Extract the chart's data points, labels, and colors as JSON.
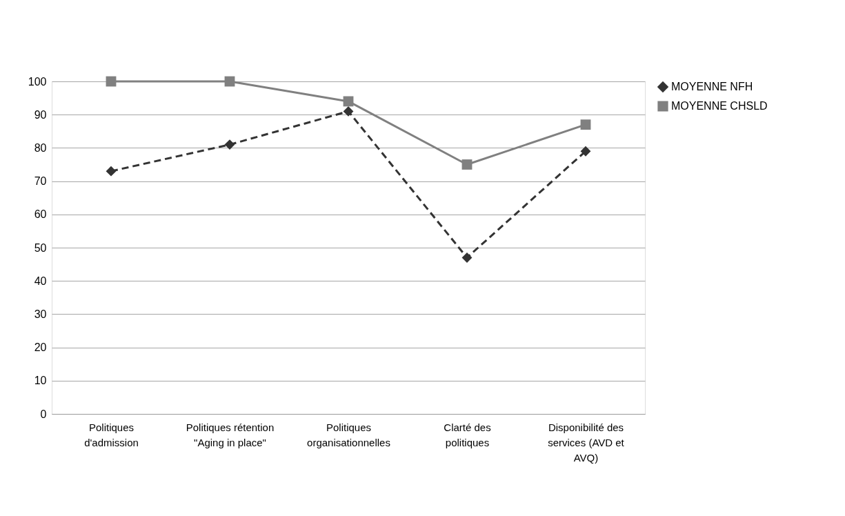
{
  "chart_data": {
    "type": "line",
    "categories": [
      "Politiques d'admission",
      "Politiques rétention \"Aging in place\"",
      "Politiques organisationnelles",
      "Clarté des politiques",
      "Disponibilité des services (AVD et AVQ)"
    ],
    "series": [
      {
        "name": "MOYENNE NFH",
        "color": "#333333",
        "values": [
          73,
          81,
          91,
          47,
          79
        ],
        "marker": "diamond",
        "line_style": "dashed"
      },
      {
        "name": "MOYENNE CHSLD",
        "color": "#808080",
        "values": [
          100,
          100,
          94,
          75,
          87
        ],
        "marker": "square",
        "line_style": "solid"
      }
    ],
    "ylim": [
      0,
      100
    ],
    "yticks": [
      0,
      10,
      20,
      30,
      40,
      50,
      60,
      70,
      80,
      90,
      100
    ],
    "grid": "y",
    "legend": "right"
  }
}
